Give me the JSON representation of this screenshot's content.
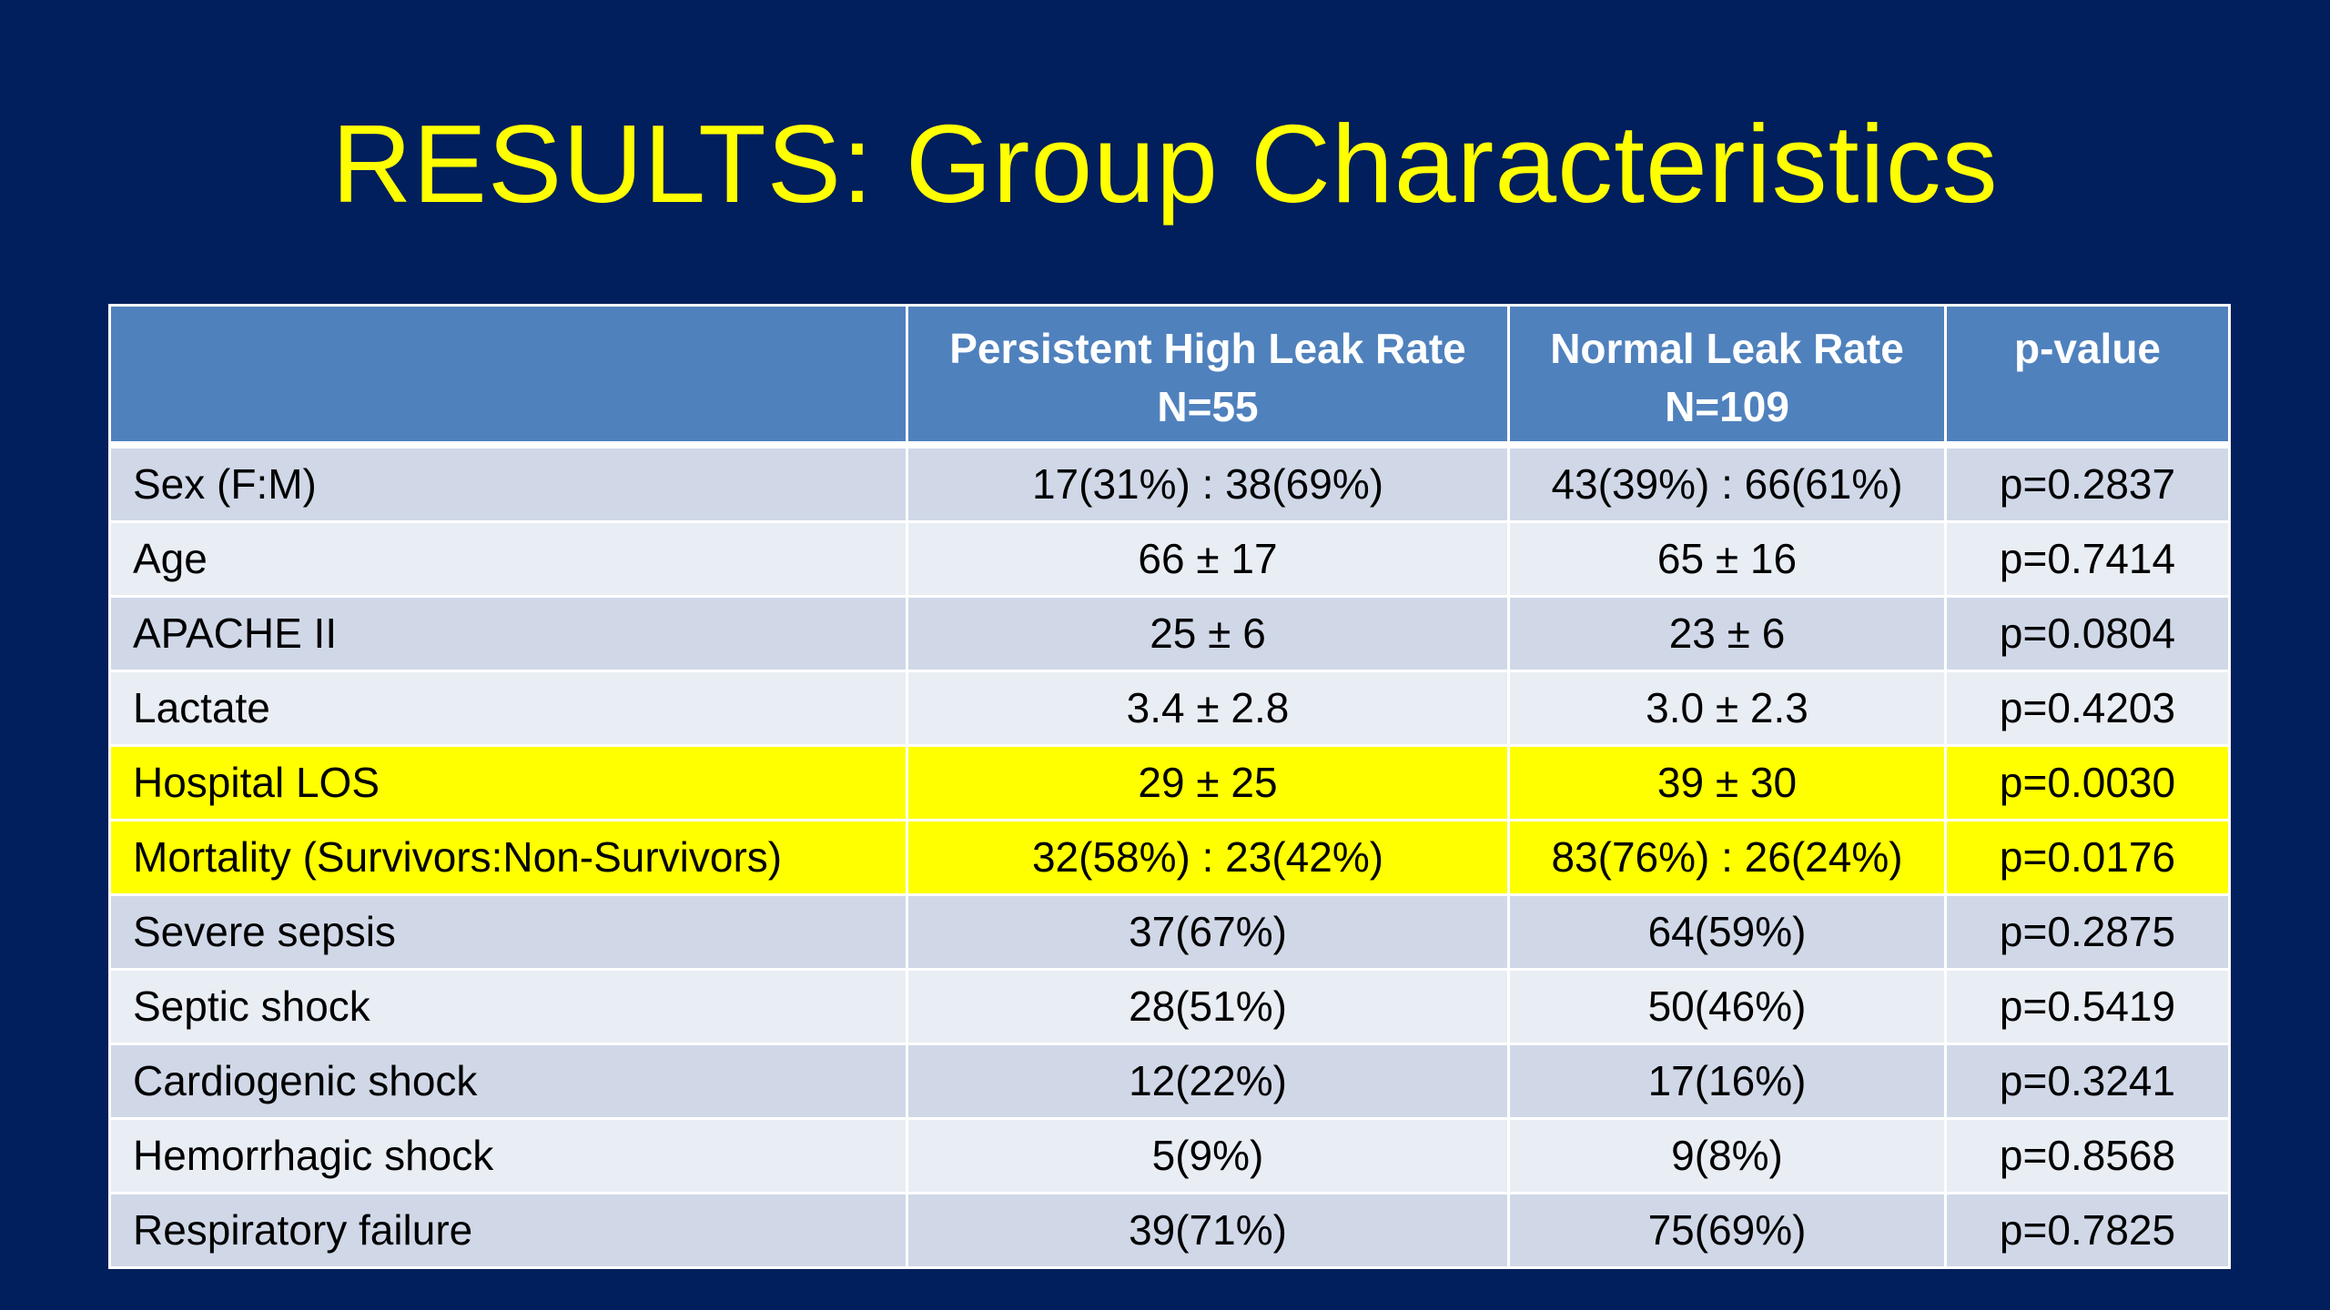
{
  "slide": {
    "title": "RESULTS: Group Characteristics"
  },
  "table": {
    "headers": [
      {
        "line1": "",
        "line2": ""
      },
      {
        "line1": "Persistent High Leak Rate",
        "line2": "N=55"
      },
      {
        "line1": "Normal Leak Rate",
        "line2": "N=109"
      },
      {
        "line1": "p-value",
        "line2": ""
      }
    ],
    "rows": [
      {
        "label": "Sex (F:M)",
        "high_leak": "17(31%) : 38(69%)",
        "normal_leak": "43(39%) : 66(61%)",
        "p_value": "p=0.2837",
        "highlighted": false
      },
      {
        "label": "Age",
        "high_leak": "66 ± 17",
        "normal_leak": "65 ± 16",
        "p_value": "p=0.7414",
        "highlighted": false
      },
      {
        "label": "APACHE II",
        "high_leak": "25 ± 6",
        "normal_leak": "23 ± 6",
        "p_value": "p=0.0804",
        "highlighted": false
      },
      {
        "label": "Lactate",
        "high_leak": "3.4 ± 2.8",
        "normal_leak": "3.0 ± 2.3",
        "p_value": "p=0.4203",
        "highlighted": false
      },
      {
        "label": "Hospital LOS",
        "high_leak": "29 ± 25",
        "normal_leak": "39 ± 30",
        "p_value": "p=0.0030",
        "highlighted": true
      },
      {
        "label": "Mortality (Survivors:Non-Survivors)",
        "high_leak": "32(58%) : 23(42%)",
        "normal_leak": "83(76%) : 26(24%)",
        "p_value": "p=0.0176",
        "highlighted": true
      },
      {
        "label": "Severe sepsis",
        "high_leak": "37(67%)",
        "normal_leak": "64(59%)",
        "p_value": "p=0.2875",
        "highlighted": false
      },
      {
        "label": "Septic shock",
        "high_leak": "28(51%)",
        "normal_leak": "50(46%)",
        "p_value": "p=0.5419",
        "highlighted": false
      },
      {
        "label": "Cardiogenic shock",
        "high_leak": "12(22%)",
        "normal_leak": "17(16%)",
        "p_value": "p=0.3241",
        "highlighted": false
      },
      {
        "label": "Hemorrhagic shock",
        "high_leak": "5(9%)",
        "normal_leak": "9(8%)",
        "p_value": "p=0.8568",
        "highlighted": false
      },
      {
        "label": "Respiratory failure",
        "high_leak": "39(71%)",
        "normal_leak": "75(69%)",
        "p_value": "p=0.7825",
        "highlighted": false
      }
    ]
  },
  "colors": {
    "background": "#001f5c",
    "title": "#ffff00",
    "header": "#4f81bd",
    "row_band_dark": "#d0d8e8",
    "row_band_light": "#e9edf4",
    "highlight": "#ffff00"
  }
}
